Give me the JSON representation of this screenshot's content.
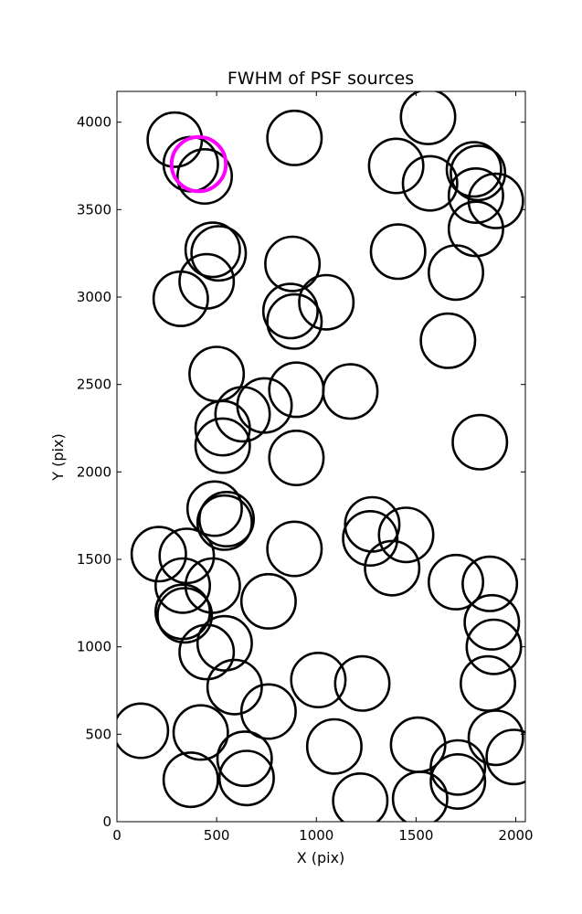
{
  "chart_data": {
    "type": "scatter",
    "title": "FWHM of PSF sources",
    "xlabel": "X (pix)",
    "ylabel": "Y (pix)",
    "xlim": [
      0,
      2048
    ],
    "ylim": [
      0,
      4176
    ],
    "xticks": [
      0,
      500,
      1000,
      1500,
      2000
    ],
    "yticks": [
      0,
      500,
      1000,
      1500,
      2000,
      2500,
      3000,
      3500,
      4000
    ],
    "marker": "circle",
    "circle_radius": 145,
    "series": [
      {
        "color": "#000000",
        "points": [
          [
            290,
            3900
          ],
          [
            370,
            3760
          ],
          [
            440,
            3690
          ],
          [
            890,
            3910
          ],
          [
            1400,
            3750
          ],
          [
            1560,
            4030
          ],
          [
            1570,
            3650
          ],
          [
            1790,
            3730
          ],
          [
            1810,
            3710
          ],
          [
            1800,
            3580
          ],
          [
            1900,
            3550
          ],
          [
            1800,
            3390
          ],
          [
            480,
            3270
          ],
          [
            510,
            3250
          ],
          [
            880,
            3190
          ],
          [
            1410,
            3260
          ],
          [
            1700,
            3140
          ],
          [
            320,
            2990
          ],
          [
            450,
            3090
          ],
          [
            870,
            2920
          ],
          [
            890,
            2860
          ],
          [
            1050,
            2970
          ],
          [
            1660,
            2750
          ],
          [
            500,
            2560
          ],
          [
            740,
            2380
          ],
          [
            630,
            2330
          ],
          [
            900,
            2470
          ],
          [
            1170,
            2460
          ],
          [
            530,
            2250
          ],
          [
            530,
            2150
          ],
          [
            900,
            2080
          ],
          [
            1820,
            2170
          ],
          [
            490,
            1790
          ],
          [
            550,
            1730
          ],
          [
            540,
            1710
          ],
          [
            210,
            1530
          ],
          [
            350,
            1520
          ],
          [
            890,
            1560
          ],
          [
            1280,
            1700
          ],
          [
            1270,
            1620
          ],
          [
            1450,
            1640
          ],
          [
            1380,
            1450
          ],
          [
            1700,
            1370
          ],
          [
            1870,
            1360
          ],
          [
            330,
            1350
          ],
          [
            480,
            1350
          ],
          [
            330,
            1200
          ],
          [
            340,
            1180
          ],
          [
            760,
            1260
          ],
          [
            1880,
            1140
          ],
          [
            1890,
            1000
          ],
          [
            450,
            970
          ],
          [
            540,
            1020
          ],
          [
            590,
            770
          ],
          [
            760,
            630
          ],
          [
            1010,
            810
          ],
          [
            1230,
            790
          ],
          [
            1860,
            790
          ],
          [
            120,
            520
          ],
          [
            420,
            510
          ],
          [
            640,
            360
          ],
          [
            1090,
            430
          ],
          [
            1510,
            440
          ],
          [
            1900,
            480
          ],
          [
            1990,
            370
          ],
          [
            370,
            240
          ],
          [
            650,
            250
          ],
          [
            1220,
            120
          ],
          [
            1520,
            130
          ],
          [
            1710,
            310
          ],
          [
            1710,
            230
          ]
        ]
      },
      {
        "color": "#ff00ff",
        "points": [
          [
            410,
            3760
          ]
        ]
      }
    ]
  }
}
